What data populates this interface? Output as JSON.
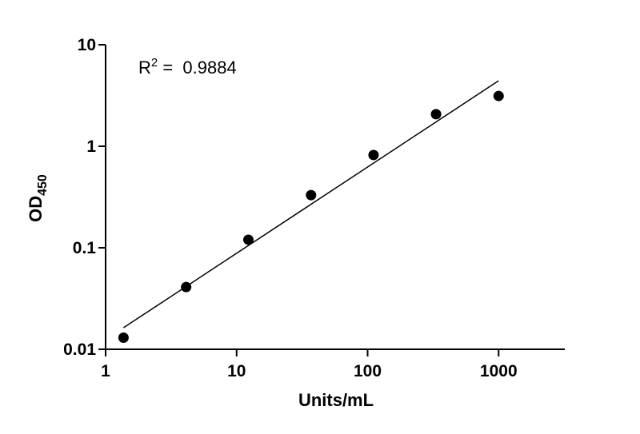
{
  "chart_data": {
    "type": "scatter",
    "x_label": "Units/mL",
    "y_label": {
      "base": "OD",
      "sub": "450"
    },
    "annotation": {
      "base": "R",
      "sup": "2",
      "text": " =  0.9884"
    },
    "x": [
      1.37,
      4.12,
      12.3,
      37,
      111,
      333,
      1000
    ],
    "values": [
      0.013,
      0.041,
      0.12,
      0.33,
      0.82,
      2.07,
      3.13
    ],
    "color": "#000000",
    "fit_line": {
      "x": [
        1.37,
        1000
      ],
      "y": [
        0.0163,
        4.42
      ],
      "color": "#000000"
    },
    "xlim": [
      1,
      3200
    ],
    "ylim": [
      0.01,
      10
    ],
    "xticks": [
      1,
      10,
      100,
      1000
    ],
    "yticks": [
      0.01,
      0.1,
      1,
      10
    ],
    "xscale": "log",
    "yscale": "log"
  }
}
